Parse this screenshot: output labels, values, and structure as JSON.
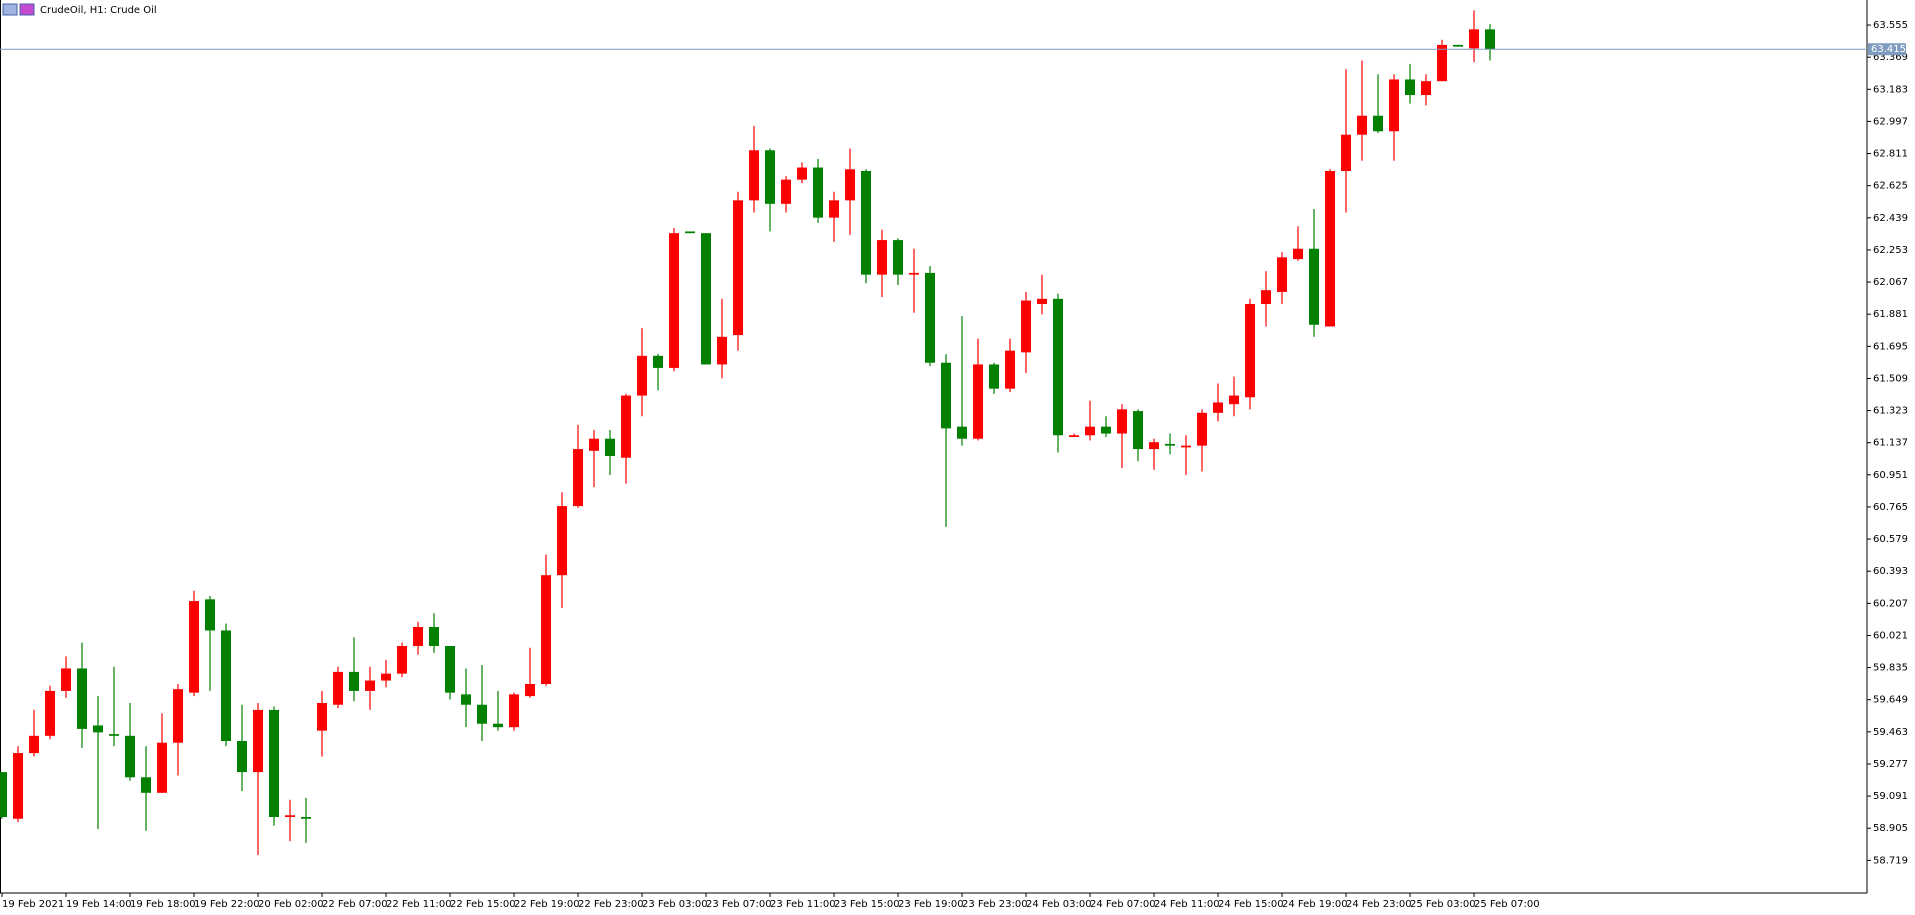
{
  "chart_data": {
    "type": "candlestick",
    "title": "CrudeOil, H1: Crude Oil",
    "categories": [
      "19 Feb 2021",
      null,
      null,
      null,
      "19 Feb 14:00",
      null,
      null,
      null,
      "19 Feb 18:00",
      null,
      null,
      null,
      "19 Feb 22:00",
      null,
      null,
      null,
      "20 Feb 02:00",
      null,
      null,
      null,
      "22 Feb 07:00",
      null,
      null,
      null,
      "22 Feb 11:00",
      null,
      null,
      null,
      "22 Feb 15:00",
      null,
      null,
      null,
      "22 Feb 19:00",
      null,
      null,
      null,
      "22 Feb 23:00",
      null,
      null,
      null,
      "23 Feb 03:00",
      null,
      null,
      null,
      "23 Feb 07:00",
      null,
      null,
      null,
      "23 Feb 11:00",
      null,
      null,
      null,
      "23 Feb 15:00",
      null,
      null,
      null,
      "23 Feb 19:00",
      null,
      null,
      null,
      "23 Feb 23:00",
      null,
      null,
      null,
      "24 Feb 03:00",
      null,
      null,
      null,
      "24 Feb 07:00",
      null,
      null,
      null,
      "24 Feb 11:00",
      null,
      null,
      null,
      "24 Feb 15:00",
      null,
      null,
      null,
      "24 Feb 19:00",
      null,
      null,
      null,
      "24 Feb 23:00",
      null,
      null,
      null,
      "25 Feb 03:00",
      null,
      null,
      null,
      "25 Feb 07:00",
      null
    ],
    "open": [
      59.23,
      58.96,
      59.34,
      59.44,
      59.7,
      59.83,
      59.5,
      59.45,
      59.44,
      59.2,
      59.11,
      59.4,
      59.69,
      60.23,
      60.05,
      59.41,
      59.23,
      59.59,
      58.97,
      58.97,
      59.47,
      59.62,
      59.81,
      59.7,
      59.76,
      59.8,
      59.96,
      60.07,
      59.96,
      59.68,
      59.62,
      59.51,
      59.49,
      59.67,
      59.74,
      60.37,
      60.77,
      61.09,
      61.16,
      61.05,
      61.41,
      61.64,
      61.57,
      62.36,
      62.35,
      61.59,
      61.76,
      62.54,
      62.83,
      62.52,
      62.66,
      62.73,
      62.44,
      62.54,
      62.71,
      62.11,
      62.31,
      62.11,
      62.12,
      61.6,
      61.23,
      61.16,
      61.59,
      61.45,
      61.66,
      61.94,
      61.97,
      61.17,
      61.18,
      61.23,
      61.19,
      61.32,
      61.1,
      61.13,
      61.11,
      61.12,
      61.31,
      61.36,
      61.4,
      61.94,
      62.01,
      62.2,
      62.26,
      61.81,
      62.71,
      62.92,
      63.03,
      62.94,
      63.24,
      63.15,
      63.23,
      63.44,
      63.42,
      63.53
    ],
    "high": [
      59.23,
      59.38,
      59.59,
      59.73,
      59.9,
      59.98,
      59.67,
      59.84,
      59.63,
      59.38,
      59.57,
      59.74,
      60.28,
      60.25,
      60.09,
      59.62,
      59.63,
      59.61,
      59.07,
      59.08,
      59.7,
      59.84,
      60.01,
      59.84,
      59.88,
      59.98,
      60.1,
      60.15,
      59.96,
      59.83,
      59.85,
      59.7,
      59.69,
      59.95,
      60.49,
      60.85,
      61.24,
      61.21,
      61.21,
      61.42,
      61.8,
      61.65,
      62.38,
      62.36,
      62.35,
      61.97,
      62.59,
      62.97,
      62.84,
      62.68,
      62.76,
      62.78,
      62.59,
      62.84,
      62.72,
      62.37,
      62.32,
      62.26,
      62.16,
      61.65,
      61.87,
      61.74,
      61.6,
      61.74,
      62.01,
      62.11,
      62.0,
      61.19,
      61.38,
      61.29,
      61.36,
      61.33,
      61.16,
      61.19,
      61.18,
      61.33,
      61.48,
      61.52,
      61.97,
      62.13,
      62.24,
      62.39,
      62.49,
      62.72,
      63.3,
      63.35,
      63.27,
      63.27,
      63.33,
      63.27,
      63.47,
      63.44,
      63.64,
      63.56
    ],
    "low": [
      58.96,
      58.94,
      59.32,
      59.42,
      59.66,
      59.37,
      58.9,
      59.38,
      59.18,
      58.89,
      59.11,
      59.21,
      59.67,
      59.7,
      59.38,
      59.12,
      58.75,
      58.92,
      58.83,
      58.82,
      59.32,
      59.6,
      59.64,
      59.59,
      59.72,
      59.78,
      59.91,
      59.92,
      59.65,
      59.49,
      59.41,
      59.47,
      59.47,
      59.66,
      59.73,
      60.18,
      60.76,
      60.88,
      60.95,
      60.9,
      61.29,
      61.44,
      61.55,
      62.35,
      61.59,
      61.51,
      61.67,
      62.47,
      62.36,
      62.47,
      62.64,
      62.41,
      62.3,
      62.34,
      62.06,
      61.98,
      62.05,
      61.89,
      61.58,
      60.65,
      61.12,
      61.15,
      61.42,
      61.43,
      61.54,
      61.88,
      61.08,
      61.17,
      61.15,
      61.17,
      60.99,
      61.03,
      60.98,
      61.07,
      60.95,
      60.97,
      61.26,
      61.29,
      61.33,
      61.81,
      61.94,
      62.19,
      61.75,
      61.81,
      62.47,
      62.77,
      62.93,
      62.77,
      63.1,
      63.09,
      63.23,
      63.43,
      63.34,
      63.35
    ],
    "close": [
      58.97,
      59.34,
      59.44,
      59.7,
      59.83,
      59.48,
      59.46,
      59.44,
      59.2,
      59.11,
      59.4,
      59.71,
      60.22,
      60.05,
      59.41,
      59.23,
      59.59,
      58.97,
      58.98,
      58.96,
      59.63,
      59.81,
      59.7,
      59.76,
      59.8,
      59.96,
      60.07,
      59.96,
      59.69,
      59.62,
      59.51,
      59.49,
      59.68,
      59.74,
      60.37,
      60.77,
      61.1,
      61.16,
      61.06,
      61.41,
      61.64,
      61.57,
      62.35,
      62.35,
      61.59,
      61.75,
      62.54,
      62.83,
      62.52,
      62.66,
      62.73,
      62.44,
      62.54,
      62.72,
      62.11,
      62.31,
      62.11,
      62.12,
      61.6,
      61.22,
      61.16,
      61.59,
      61.45,
      61.67,
      61.96,
      61.97,
      61.18,
      61.18,
      61.23,
      61.19,
      61.33,
      61.1,
      61.14,
      61.12,
      61.12,
      61.31,
      61.37,
      61.41,
      61.94,
      62.02,
      62.21,
      62.26,
      61.82,
      62.71,
      62.92,
      63.03,
      62.94,
      63.24,
      63.15,
      63.23,
      63.44,
      63.43,
      63.53,
      63.415
    ],
    "up_color": "#ff0000",
    "down_color": "#008000",
    "current_price": 63.415,
    "current_price_color": "#7f9cbf",
    "ylim": [
      58.53,
      63.7
    ],
    "yticks": [
      63.555,
      63.369,
      63.183,
      62.997,
      62.811,
      62.625,
      62.439,
      62.253,
      62.067,
      61.881,
      61.695,
      61.509,
      61.323,
      61.137,
      60.951,
      60.765,
      60.579,
      60.393,
      60.207,
      60.021,
      59.835,
      59.649,
      59.463,
      59.277,
      59.091,
      58.905,
      58.719
    ]
  }
}
